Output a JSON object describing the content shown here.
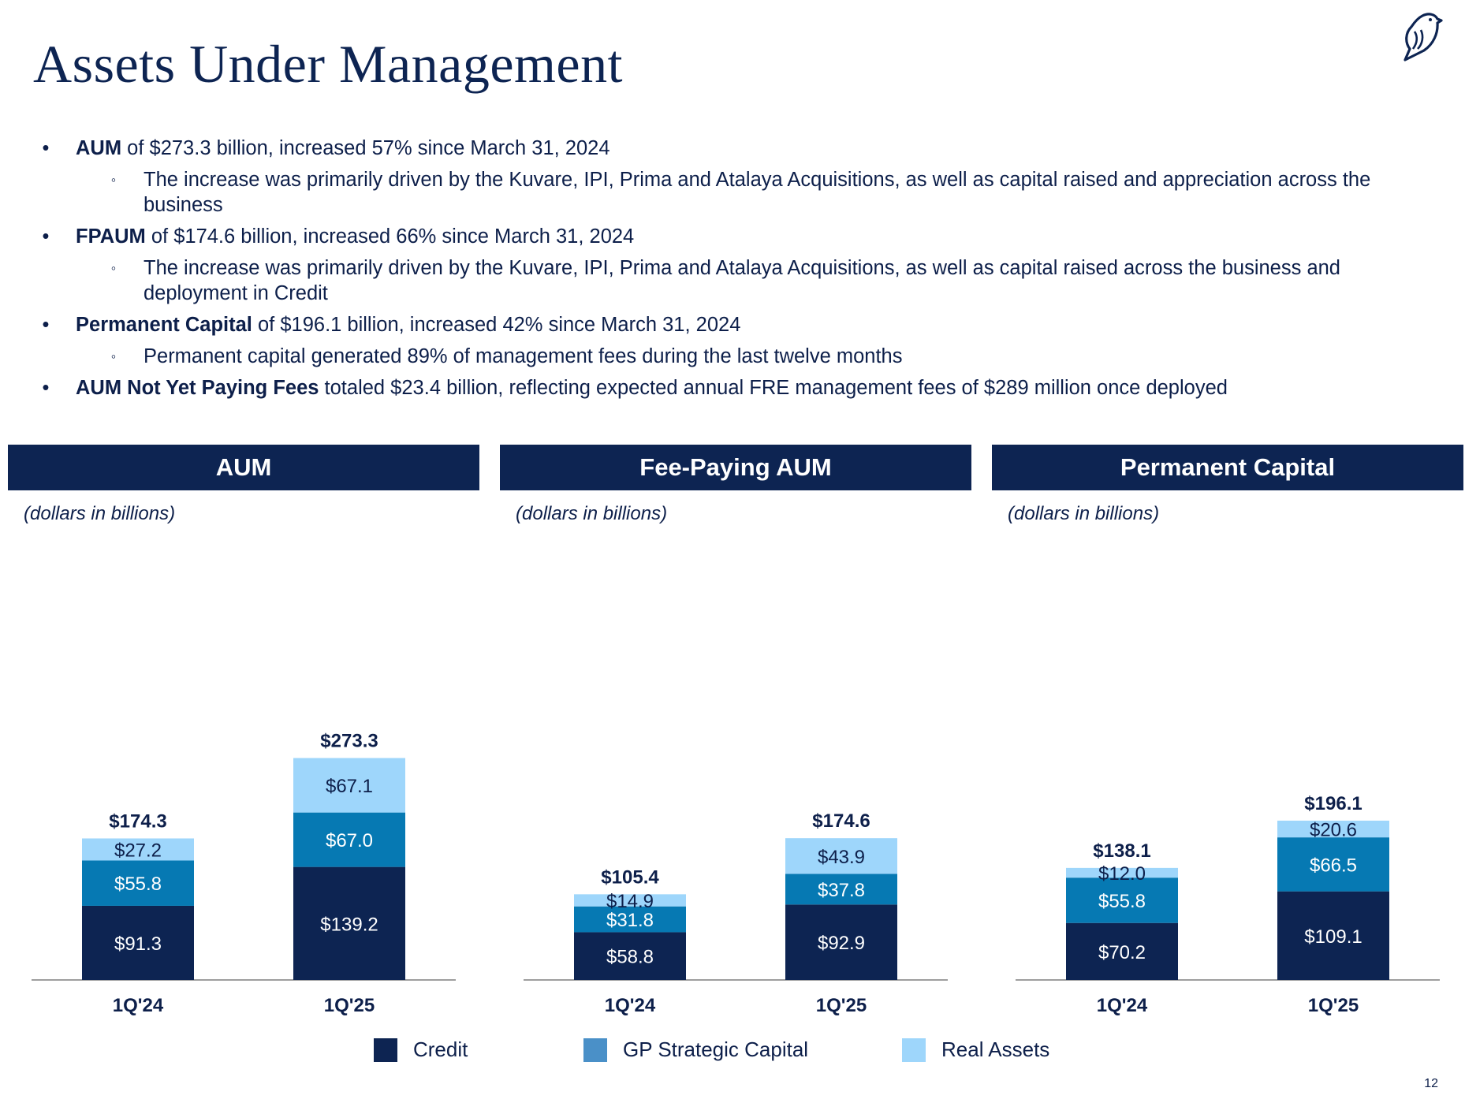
{
  "title": "Assets Under Management",
  "logo_icon": "bird-logo-icon",
  "bullets": [
    {
      "level": 1,
      "bold": "AUM",
      "text": " of $273.3 billion, increased 57% since March 31, 2024"
    },
    {
      "level": 2,
      "bold": "",
      "text": "The increase was primarily driven by the Kuvare, IPI, Prima and Atalaya Acquisitions, as well as capital raised and appreciation across the business"
    },
    {
      "level": 1,
      "bold": "FPAUM",
      "text": " of $174.6 billion, increased 66% since March 31, 2024"
    },
    {
      "level": 2,
      "bold": "",
      "text": "The increase was primarily driven by the Kuvare, IPI, Prima and Atalaya Acquisitions, as well as capital raised across the business and deployment in Credit"
    },
    {
      "level": 1,
      "bold": "Permanent Capital",
      "text": " of $196.1 billion, increased 42% since March 31, 2024"
    },
    {
      "level": 2,
      "bold": "",
      "text": "Permanent capital generated 89% of management fees during the last twelve months"
    },
    {
      "level": 1,
      "bold": "AUM Not Yet Paying Fees",
      "text": " totaled $23.4 billion, reflecting expected annual FRE management fees of $289 million once deployed"
    }
  ],
  "bullet_symbol": "•",
  "sub_bullet_symbol": "◦",
  "page_number": "12",
  "colors": {
    "navy": "#0d2452",
    "credit": "#0d2452",
    "gp_strategic": "#0679b3",
    "real_assets": "#9ed6fb",
    "legend_gp": "#4a90c8"
  },
  "legend": [
    {
      "label": "Credit",
      "color": "#0d2452"
    },
    {
      "label": "GP Strategic Capital",
      "color": "#4a90c8"
    },
    {
      "label": "Real Assets",
      "color": "#9ed6fb"
    }
  ],
  "chart_data": [
    {
      "type": "bar",
      "stacked": true,
      "title": "AUM",
      "note": "(dollars in billions)",
      "categories": [
        "1Q'24",
        "1Q'25"
      ],
      "totals": [
        "$174.3",
        "$273.3"
      ],
      "series": [
        {
          "name": "Credit",
          "values": [
            91.3,
            139.2
          ],
          "labels": [
            "$91.3",
            "$139.2"
          ]
        },
        {
          "name": "GP Strategic Capital",
          "values": [
            55.8,
            67.0
          ],
          "labels": [
            "$55.8",
            "$67.0"
          ]
        },
        {
          "name": "Real Assets",
          "values": [
            27.2,
            67.1
          ],
          "labels": [
            "$27.2",
            "$67.1"
          ]
        }
      ]
    },
    {
      "type": "bar",
      "stacked": true,
      "title": "Fee-Paying AUM",
      "note": "(dollars in billions)",
      "categories": [
        "1Q'24",
        "1Q'25"
      ],
      "totals": [
        "$105.4",
        "$174.6"
      ],
      "series": [
        {
          "name": "Credit",
          "values": [
            58.8,
            92.9
          ],
          "labels": [
            "$58.8",
            "$92.9"
          ]
        },
        {
          "name": "GP Strategic Capital",
          "values": [
            31.8,
            37.8
          ],
          "labels": [
            "$31.8",
            "$37.8"
          ]
        },
        {
          "name": "Real Assets",
          "values": [
            14.9,
            43.9
          ],
          "labels": [
            "$14.9",
            "$43.9"
          ]
        }
      ]
    },
    {
      "type": "bar",
      "stacked": true,
      "title": "Permanent Capital",
      "note": "(dollars in billions)",
      "categories": [
        "1Q'24",
        "1Q'25"
      ],
      "totals": [
        "$138.1",
        "$196.1"
      ],
      "series": [
        {
          "name": "Credit",
          "values": [
            70.2,
            109.1
          ],
          "labels": [
            "$70.2",
            "$109.1"
          ]
        },
        {
          "name": "GP Strategic Capital",
          "values": [
            55.8,
            66.5
          ],
          "labels": [
            "$55.8",
            "$66.5"
          ]
        },
        {
          "name": "Real Assets",
          "values": [
            12.0,
            20.6
          ],
          "labels": [
            "$12.0",
            "$20.6"
          ]
        }
      ]
    }
  ]
}
